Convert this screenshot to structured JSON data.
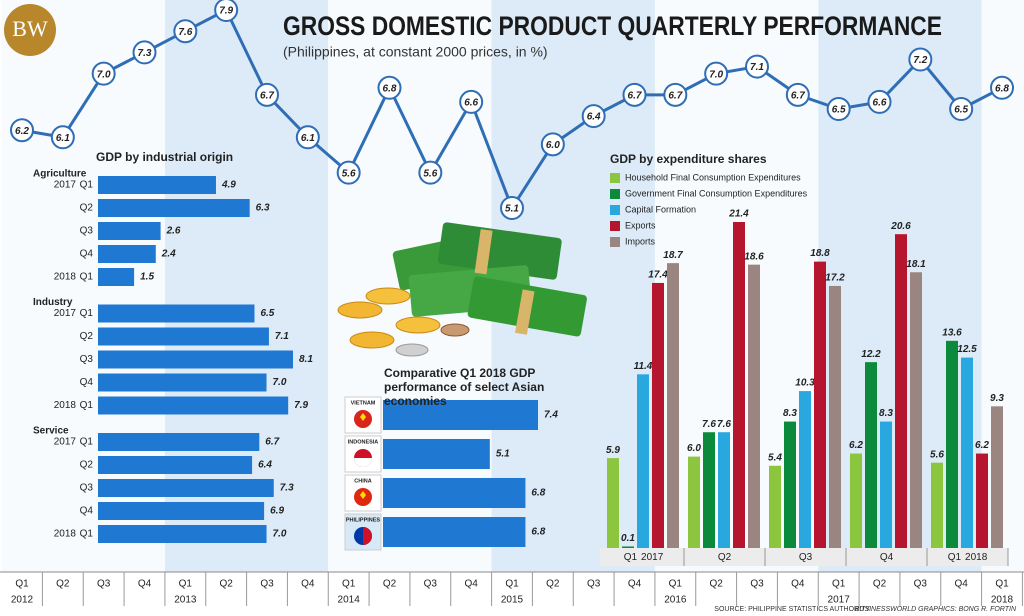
{
  "logo": "BW",
  "title": "GROSS DOMESTIC PRODUCT QUARTERLY PERFORMANCE",
  "subtitle": "(Philippines, at constant 2000 prices, in %)",
  "chart_data": [
    {
      "type": "line",
      "color": "#2f6db5",
      "categories": [
        "Q1",
        "Q2",
        "Q3",
        "Q4",
        "Q1",
        "Q2",
        "Q3",
        "Q4",
        "Q1",
        "Q2",
        "Q3",
        "Q4",
        "Q1",
        "Q2",
        "Q3",
        "Q4",
        "Q1",
        "Q2",
        "Q3",
        "Q4",
        "Q1",
        "Q2",
        "Q3",
        "Q4",
        "Q1"
      ],
      "years": [
        "2012",
        null,
        null,
        null,
        "2013",
        null,
        null,
        null,
        "2014",
        null,
        null,
        null,
        "2015",
        null,
        null,
        null,
        "2016",
        null,
        null,
        null,
        "2017",
        null,
        null,
        null,
        "2018"
      ],
      "values": [
        6.2,
        6.1,
        7.0,
        7.3,
        7.6,
        7.9,
        6.7,
        6.1,
        5.6,
        6.8,
        5.6,
        6.6,
        5.1,
        6.0,
        6.4,
        6.7,
        6.7,
        7.0,
        7.1,
        6.7,
        6.5,
        6.6,
        7.2,
        6.5,
        6.8
      ],
      "value_labels": [
        "6.2",
        "6.1",
        "7.0",
        "7.3",
        "7.6",
        "7.9",
        "6.7",
        "6.1",
        "5.6",
        "6.8",
        "5.6",
        "6.6",
        "5.1",
        "6.0",
        "6.4",
        "6.7",
        "6.7",
        "7.0",
        "7.1",
        "6.7",
        "6.5",
        "6.6",
        "7.2",
        "6.5",
        "6.8"
      ]
    },
    {
      "type": "hbar_groups",
      "title": "GDP by industrial origin",
      "color": "#1f78d1",
      "groups": [
        {
          "name": "Agriculture",
          "categories": [
            "Q1",
            "Q2",
            "Q3",
            "Q4",
            "Q1"
          ],
          "years": [
            "2017",
            null,
            null,
            null,
            "2018"
          ],
          "values": [
            4.9,
            6.3,
            2.6,
            2.4,
            1.5
          ],
          "value_labels": [
            "4.9",
            "6.3",
            "2.6",
            "2.4",
            "1.5"
          ]
        },
        {
          "name": "Industry",
          "categories": [
            "Q1",
            "Q2",
            "Q3",
            "Q4",
            "Q1"
          ],
          "years": [
            "2017",
            null,
            null,
            null,
            "2018"
          ],
          "values": [
            6.5,
            7.1,
            8.1,
            7.0,
            7.9
          ],
          "value_labels": [
            "6.5",
            "7.1",
            "8.1",
            "7.0",
            "7.9"
          ]
        },
        {
          "name": "Service",
          "categories": [
            "Q1",
            "Q2",
            "Q3",
            "Q4",
            "Q1"
          ],
          "years": [
            "2017",
            null,
            null,
            null,
            "2018"
          ],
          "values": [
            6.7,
            6.4,
            7.3,
            6.9,
            7.0
          ],
          "value_labels": [
            "6.7",
            "6.4",
            "7.3",
            "6.9",
            "7.0"
          ]
        }
      ]
    },
    {
      "type": "hbar",
      "title": "Comparative Q1 2018 GDP performance of select Asian economies",
      "color": "#1f78d1",
      "categories": [
        "VIETNAM",
        "INDONESIA",
        "CHINA",
        "PHILIPPINES"
      ],
      "values": [
        7.4,
        5.1,
        6.8,
        6.8
      ]
    },
    {
      "type": "grouped_bar",
      "title": "GDP by expenditure shares",
      "categories": [
        "Q1",
        "Q2",
        "Q3",
        "Q4",
        "Q1"
      ],
      "years": [
        "2017",
        null,
        null,
        null,
        "2018"
      ],
      "series": [
        {
          "name": "Household Final Consumption Expenditures",
          "color": "#8cc63f",
          "values": [
            5.9,
            6.0,
            5.4,
            6.2,
            5.6
          ],
          "value_labels": [
            "5.9",
            "6.0",
            "5.4",
            "6.2",
            "5.6"
          ]
        },
        {
          "name": "Government Final Consumption Expenditures",
          "color": "#0a8a3a",
          "values": [
            0.1,
            7.6,
            8.3,
            12.2,
            13.6
          ],
          "value_labels": [
            "0.1",
            "7.6",
            "8.3",
            "12.2",
            "13.6"
          ]
        },
        {
          "name": "Capital Formation",
          "color": "#29a8e0",
          "values": [
            11.4,
            7.6,
            10.3,
            8.3,
            12.5
          ],
          "value_labels": [
            "11.4",
            "7.6",
            "10.3",
            "8.3",
            "12.5"
          ]
        },
        {
          "name": "Exports",
          "color": "#b5162e",
          "values": [
            17.4,
            21.4,
            18.8,
            20.6,
            6.2
          ],
          "value_labels": [
            "17.4",
            "21.4",
            "18.8",
            "20.6",
            "6.2"
          ]
        },
        {
          "name": "Imports",
          "color": "#9b8580",
          "values": [
            18.7,
            18.6,
            17.2,
            18.1,
            9.3
          ],
          "value_labels": [
            "18.7",
            "18.6",
            "17.2",
            "18.1",
            "9.3"
          ]
        }
      ]
    }
  ],
  "source": "SOURCE: PHILIPPINE STATISTICS AUTHORITY",
  "credit": "BUSINESSWORLD GRAPHICS: BONG R. FORTIN"
}
